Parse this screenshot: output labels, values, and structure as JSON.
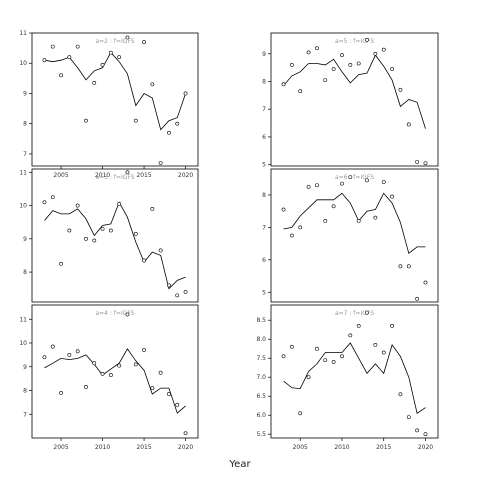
{
  "figure": {
    "xlabel": "Year"
  },
  "chart_data": [
    {
      "type": "line",
      "title": "a=2 : f=IGFS",
      "x": [
        2003,
        2004,
        2005,
        2006,
        2007,
        2008,
        2009,
        2010,
        2011,
        2012,
        2013,
        2014,
        2015,
        2016,
        2017,
        2018,
        2019,
        2020
      ],
      "fit": [
        10.1,
        10.05,
        10.1,
        10.2,
        9.85,
        9.45,
        9.75,
        9.85,
        10.35,
        10.05,
        9.65,
        8.6,
        9.0,
        8.85,
        7.8,
        8.1,
        8.2,
        9.0
      ],
      "obs": [
        10.1,
        10.55,
        9.6,
        10.2,
        10.55,
        8.1,
        9.35,
        9.95,
        10.35,
        10.2,
        10.85,
        8.1,
        10.7,
        9.3,
        6.7,
        7.7,
        8.0,
        9.0
      ],
      "xlim": [
        2001.5,
        2021.5
      ],
      "ylim": [
        6.6,
        11.0
      ],
      "xticks": [
        "2005",
        "2010",
        "2015",
        "2020"
      ],
      "yticks": [
        "7",
        "8",
        "9",
        "10",
        "11"
      ]
    },
    {
      "type": "line",
      "title": "a=5 : f=IGFS",
      "x": [
        2003,
        2004,
        2005,
        2006,
        2007,
        2008,
        2009,
        2010,
        2011,
        2012,
        2013,
        2014,
        2015,
        2016,
        2017,
        2018,
        2019,
        2020
      ],
      "fit": [
        7.85,
        8.2,
        8.35,
        8.65,
        8.65,
        8.6,
        8.8,
        8.35,
        7.95,
        8.25,
        8.3,
        8.95,
        8.55,
        8.05,
        7.1,
        7.35,
        7.25,
        6.3
      ],
      "obs": [
        7.9,
        8.6,
        7.65,
        9.05,
        9.2,
        8.05,
        8.45,
        8.95,
        8.6,
        8.65,
        9.5,
        9.0,
        9.15,
        8.45,
        7.7,
        6.45,
        5.1,
        5.05
      ],
      "xlim": [
        2001.5,
        2021.5
      ],
      "ylim": [
        4.95,
        9.75
      ],
      "xticks": [],
      "yticks": [
        "5",
        "6",
        "7",
        "8",
        "9"
      ]
    },
    {
      "type": "line",
      "title": "a=3 : f=IGFS",
      "x": [
        2003,
        2004,
        2005,
        2006,
        2007,
        2008,
        2009,
        2010,
        2011,
        2012,
        2013,
        2014,
        2015,
        2016,
        2017,
        2018,
        2019,
        2020
      ],
      "fit": [
        9.55,
        9.85,
        9.75,
        9.75,
        9.9,
        9.6,
        9.1,
        9.4,
        9.45,
        10.1,
        9.65,
        8.9,
        8.3,
        8.6,
        8.5,
        7.5,
        7.75,
        7.85
      ],
      "obs": [
        10.1,
        10.25,
        8.25,
        9.25,
        10.0,
        9.0,
        8.95,
        9.3,
        9.25,
        10.05,
        11.0,
        9.15,
        8.35,
        9.9,
        8.65,
        7.6,
        7.3,
        7.4
      ],
      "xlim": [
        2001.5,
        2021.5
      ],
      "ylim": [
        7.1,
        11.1
      ],
      "xticks": [],
      "yticks": [
        "8",
        "9",
        "10",
        "11"
      ]
    },
    {
      "type": "line",
      "title": "a=6 : f=IGFS",
      "x": [
        2003,
        2004,
        2005,
        2006,
        2007,
        2008,
        2009,
        2010,
        2011,
        2012,
        2013,
        2014,
        2015,
        2016,
        2017,
        2018,
        2019,
        2020
      ],
      "fit": [
        6.95,
        7.0,
        7.35,
        7.6,
        7.85,
        7.85,
        7.85,
        8.05,
        7.75,
        7.2,
        7.5,
        7.55,
        8.05,
        7.75,
        7.15,
        6.2,
        6.4,
        6.4
      ],
      "obs": [
        7.55,
        6.75,
        7.0,
        8.25,
        8.3,
        7.2,
        7.65,
        8.35,
        8.55,
        7.2,
        8.45,
        7.3,
        8.4,
        7.95,
        5.8,
        5.8,
        4.8,
        5.3
      ],
      "xlim": [
        2001.5,
        2021.5
      ],
      "ylim": [
        4.7,
        8.8
      ],
      "xticks": [],
      "yticks": [
        "5",
        "6",
        "7",
        "8"
      ]
    },
    {
      "type": "line",
      "title": "a=4 : f=IGFS",
      "x": [
        2003,
        2004,
        2005,
        2006,
        2007,
        2008,
        2009,
        2010,
        2011,
        2012,
        2013,
        2014,
        2015,
        2016,
        2017,
        2018,
        2019,
        2020
      ],
      "fit": [
        8.95,
        9.15,
        9.35,
        9.3,
        9.35,
        9.5,
        9.1,
        8.65,
        8.9,
        9.15,
        9.75,
        9.25,
        8.85,
        7.85,
        8.1,
        8.1,
        7.05,
        7.35
      ],
      "obs": [
        9.4,
        9.85,
        7.9,
        9.5,
        9.65,
        8.15,
        9.15,
        8.7,
        8.65,
        9.05,
        11.2,
        9.1,
        9.7,
        8.1,
        8.75,
        7.85,
        7.4,
        6.2
      ],
      "xlim": [
        2001.5,
        2021.5
      ],
      "ylim": [
        6.0,
        11.6
      ],
      "xticks": [
        "2005",
        "2010",
        "2015",
        "2020"
      ],
      "yticks": [
        "7",
        "8",
        "9",
        "10",
        "11"
      ]
    },
    {
      "type": "line",
      "title": "a=7 : f=IGFS",
      "x": [
        2003,
        2004,
        2005,
        2006,
        2007,
        2008,
        2009,
        2010,
        2011,
        2012,
        2013,
        2014,
        2015,
        2016,
        2017,
        2018,
        2019,
        2020
      ],
      "fit": [
        6.9,
        6.72,
        6.7,
        7.15,
        7.35,
        7.65,
        7.65,
        7.65,
        7.9,
        7.5,
        7.1,
        7.35,
        7.1,
        7.85,
        7.55,
        7.0,
        6.05,
        6.2
      ],
      "obs": [
        7.55,
        7.8,
        6.05,
        7.0,
        7.75,
        7.45,
        7.4,
        7.55,
        8.1,
        8.35,
        8.7,
        7.85,
        7.65,
        8.35,
        6.55,
        5.95,
        5.6,
        5.5
      ],
      "xlim": [
        2001.5,
        2021.5
      ],
      "ylim": [
        5.4,
        8.9
      ],
      "xticks": [
        "2005",
        "2010",
        "2015",
        "2020"
      ],
      "yticks": [
        "5.5",
        "6.0",
        "6.5",
        "7.0",
        "7.5",
        "8.0",
        "8.5"
      ]
    }
  ]
}
